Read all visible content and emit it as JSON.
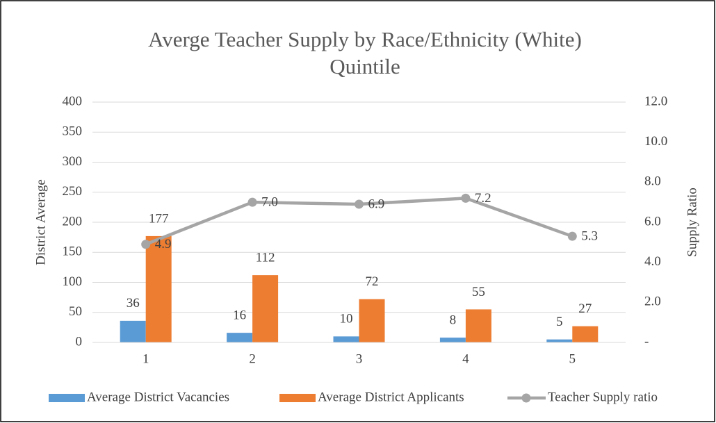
{
  "chart_data": {
    "type": "bar_line",
    "title": [
      "Averge Teacher Supply by Race/Ethnicity (White)",
      "Quintile"
    ],
    "ylabel": "District Average",
    "y2label": "Supply Ratio",
    "categories": [
      "1",
      "2",
      "3",
      "4",
      "5"
    ],
    "series": [
      {
        "name": "Average District Vacancies",
        "type": "bar",
        "color": "#5b9bd5",
        "values": [
          36,
          16,
          10,
          8,
          5
        ]
      },
      {
        "name": "Average District Applicants",
        "type": "bar",
        "color": "#ed7d31",
        "values": [
          177,
          112,
          72,
          55,
          27
        ]
      },
      {
        "name": "Teacher Supply ratio",
        "type": "line",
        "axis": "y2",
        "color": "#a5a5a5",
        "values": [
          4.9,
          7.0,
          6.9,
          7.2,
          5.3
        ],
        "value_labels": [
          "4.9",
          "7.0",
          "6.9",
          "7.2",
          "5.3"
        ]
      }
    ],
    "ylim": [
      0,
      400
    ],
    "yticks": [
      0,
      50,
      100,
      150,
      200,
      250,
      300,
      350,
      400
    ],
    "y2lim": [
      0,
      12
    ],
    "y2ticks": [
      {
        "value": 0,
        "label": "-"
      },
      {
        "value": 2,
        "label": "2.0"
      },
      {
        "value": 4,
        "label": "4.0"
      },
      {
        "value": 6,
        "label": "6.0"
      },
      {
        "value": 8,
        "label": "8.0"
      },
      {
        "value": 10,
        "label": "10.0"
      },
      {
        "value": 12,
        "label": "12.0"
      }
    ],
    "legend": "bottom"
  }
}
